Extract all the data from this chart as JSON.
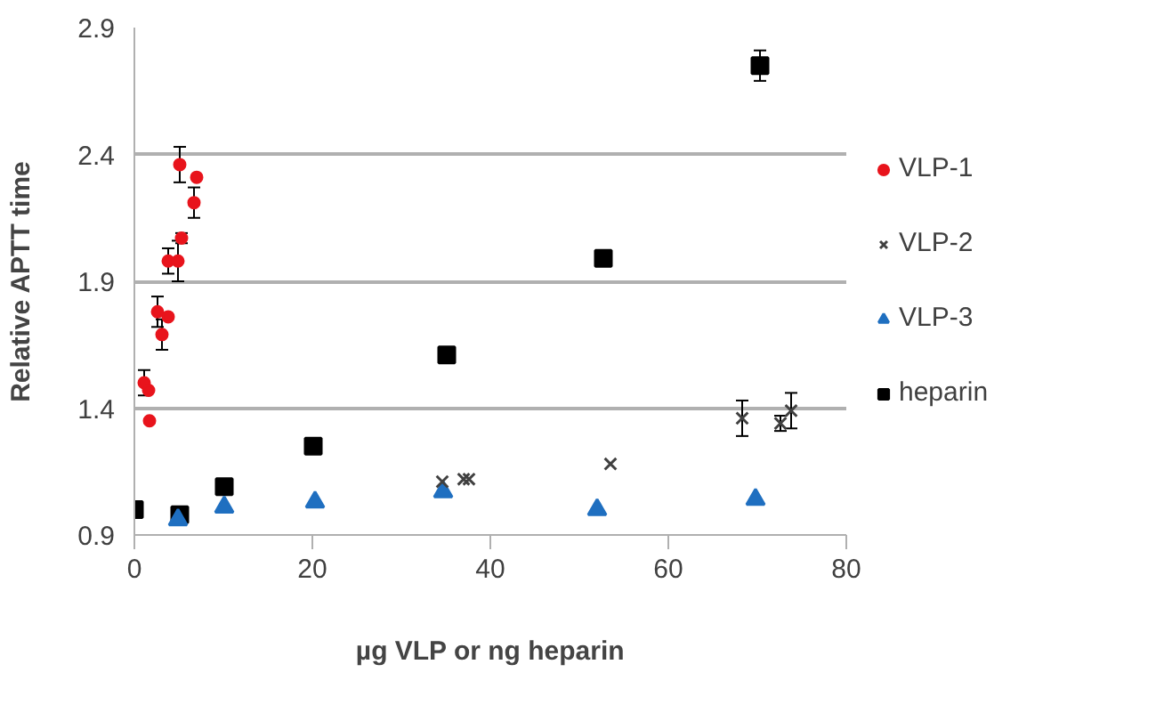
{
  "chart_data": {
    "type": "scatter",
    "xlabel": "µg VLP or ng heparin",
    "ylabel": "Relative APTT time",
    "xlim": [
      0,
      80
    ],
    "ylim": [
      0.9,
      2.9
    ],
    "xticks": [
      0,
      20,
      40,
      60,
      80
    ],
    "yticks": [
      {
        "value": 0.9,
        "label": "0.9"
      },
      {
        "value": 1.4,
        "label": "1.4"
      },
      {
        "value": 1.9,
        "label": "1.9"
      },
      {
        "value": 2.4,
        "label": "2.4"
      },
      {
        "value": 2.9,
        "label": "2.9"
      }
    ],
    "grid": "y",
    "legend": "right",
    "series": [
      {
        "name": "VLP-1",
        "color": "#e8141c",
        "marker": "circle",
        "x": [
          1.1,
          1.6,
          1.7,
          2.6,
          3.1,
          3.8,
          3.8,
          4.9,
          5.3,
          5.1,
          6.7,
          7.0
        ],
        "values": [
          1.5,
          1.47,
          1.35,
          1.78,
          1.69,
          1.76,
          1.98,
          1.98,
          2.07,
          2.36,
          2.21,
          2.31
        ],
        "errors": [
          0.05,
          null,
          null,
          0.06,
          0.06,
          null,
          0.05,
          0.08,
          0.02,
          0.07,
          0.06,
          null
        ]
      },
      {
        "name": "VLP-2",
        "color": "#404040",
        "marker": "cross",
        "x": [
          34.6,
          37.0,
          37.6,
          53.5,
          68.3,
          72.6,
          73.8
        ],
        "values": [
          1.11,
          1.12,
          1.12,
          1.18,
          1.36,
          1.34,
          1.39
        ],
        "errors": [
          null,
          null,
          null,
          null,
          0.07,
          0.03,
          0.07
        ]
      },
      {
        "name": "VLP-3",
        "color": "#1f6fc0",
        "marker": "triangle",
        "x": [
          4.9,
          10.1,
          20.3,
          34.7,
          52.0,
          69.8
        ],
        "values": [
          0.96,
          1.01,
          1.03,
          1.07,
          1.0,
          1.04
        ]
      },
      {
        "name": "heparin",
        "color": "#000000",
        "marker": "square",
        "x": [
          0,
          5.1,
          10.1,
          20.1,
          35.1,
          52.7,
          70.3
        ],
        "values": [
          1.0,
          0.98,
          1.09,
          1.25,
          1.61,
          1.99,
          2.75
        ],
        "errors": [
          null,
          null,
          null,
          null,
          null,
          null,
          0.06
        ]
      }
    ]
  }
}
